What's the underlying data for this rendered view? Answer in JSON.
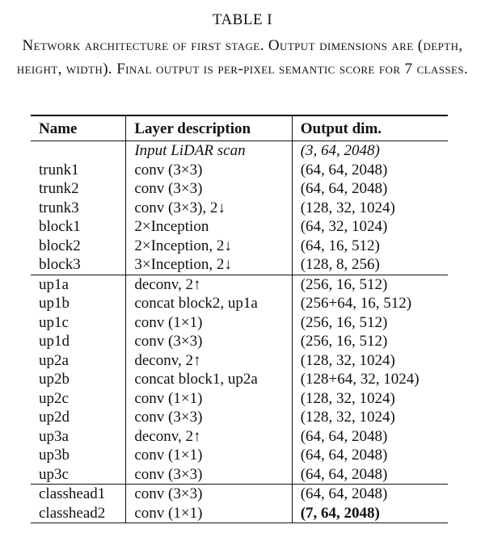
{
  "table_label": "TABLE I",
  "caption": "Network architecture of first stage. Output dimensions are (depth, height, width). Final output is per-pixel semantic score for 7 classes.",
  "headers": [
    "Name",
    "Layer description",
    "Output dim."
  ],
  "groups": [
    [
      {
        "name": "",
        "desc": "Input LiDAR scan",
        "out": "(3, 64, 2048)",
        "style": "italic"
      },
      {
        "name": "trunk1",
        "desc": "conv (3×3)",
        "out": "(64, 64, 2048)",
        "style": ""
      },
      {
        "name": "trunk2",
        "desc": "conv (3×3)",
        "out": "(64, 64, 2048)",
        "style": ""
      },
      {
        "name": "trunk3",
        "desc": "conv (3×3), 2↓",
        "out": "(128, 32, 1024)",
        "style": ""
      },
      {
        "name": "block1",
        "desc": "2×Inception",
        "out": "(64, 32, 1024)",
        "style": ""
      },
      {
        "name": "block2",
        "desc": "2×Inception, 2↓",
        "out": "(64, 16, 512)",
        "style": ""
      },
      {
        "name": "block3",
        "desc": "3×Inception, 2↓",
        "out": "(128, 8, 256)",
        "style": ""
      }
    ],
    [
      {
        "name": "up1a",
        "desc": "deconv, 2↑",
        "out": "(256, 16, 512)",
        "style": ""
      },
      {
        "name": "up1b",
        "desc": "concat block2, up1a",
        "out": "(256+64, 16, 512)",
        "style": ""
      },
      {
        "name": "up1c",
        "desc": "conv (1×1)",
        "out": "(256, 16, 512)",
        "style": ""
      },
      {
        "name": "up1d",
        "desc": "conv (3×3)",
        "out": "(256, 16, 512)",
        "style": ""
      },
      {
        "name": "up2a",
        "desc": "deconv, 2↑",
        "out": "(128, 32, 1024)",
        "style": ""
      },
      {
        "name": "up2b",
        "desc": "concat block1, up2a",
        "out": "(128+64, 32, 1024)",
        "style": ""
      },
      {
        "name": "up2c",
        "desc": "conv (1×1)",
        "out": "(128, 32, 1024)",
        "style": ""
      },
      {
        "name": "up2d",
        "desc": "conv (3×3)",
        "out": "(128, 32, 1024)",
        "style": ""
      },
      {
        "name": "up3a",
        "desc": "deconv, 2↑",
        "out": "(64, 64, 2048)",
        "style": ""
      },
      {
        "name": "up3b",
        "desc": "conv (1×1)",
        "out": "(64, 64, 2048)",
        "style": ""
      },
      {
        "name": "up3c",
        "desc": "conv (3×3)",
        "out": "(64, 64, 2048)",
        "style": ""
      }
    ],
    [
      {
        "name": "classhead1",
        "desc": "conv (3×3)",
        "out": "(64, 64, 2048)",
        "style": ""
      },
      {
        "name": "classhead2",
        "desc": "conv (1×1)",
        "out": "(7, 64, 2048)",
        "style": "bold-out"
      }
    ]
  ]
}
